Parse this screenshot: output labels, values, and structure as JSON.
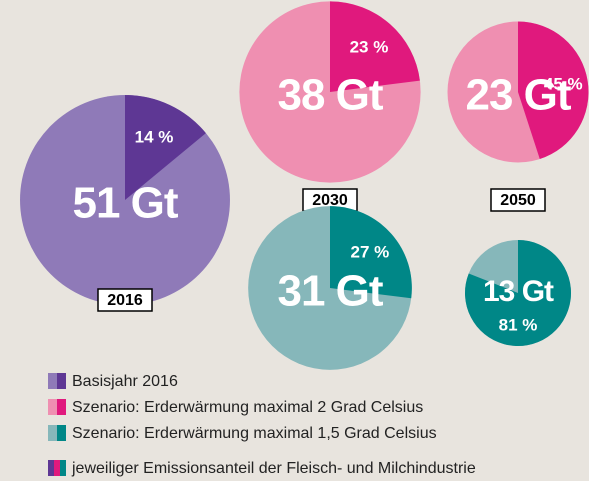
{
  "chart_data": {
    "type": "pie",
    "series": [
      {
        "name": "Basisjahr 2016",
        "color": "#8f7ab8",
        "share_color": "#5e3794"
      },
      {
        "name": "Szenario: Erderwärmung maximal 2 Grad Celsius",
        "color": "#ef8fb1",
        "share_color": "#e0197d"
      },
      {
        "name": "Szenario: Erderwärmung maximal 1,5 Grad Celsius",
        "color": "#86b7ba",
        "share_color": "#008787"
      }
    ],
    "pies": [
      {
        "label": "2016",
        "series": 0,
        "total": 51,
        "total_label": "51 Gt",
        "share": 14,
        "share_label": "14 %"
      },
      {
        "label": "2030",
        "series": 1,
        "total": 38,
        "total_label": "38 Gt",
        "share": 23,
        "share_label": "23 %"
      },
      {
        "label": "2050",
        "series": 1,
        "total": 23,
        "total_label": "23 Gt",
        "share": 45,
        "share_label": "45 %"
      },
      {
        "series": 2,
        "total": 31,
        "total_label": "31 Gt",
        "share": 27,
        "share_label": "27 %"
      },
      {
        "series": 2,
        "total": 13,
        "total_label": "13 Gt",
        "share": 81,
        "share_label": "81 %"
      }
    ],
    "note": "jeweiliger Emissionsanteil der Fleisch- und Milchindustrie"
  }
}
